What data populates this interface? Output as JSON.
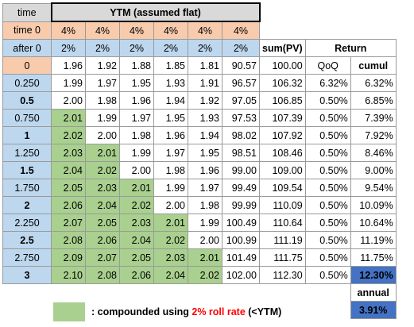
{
  "header": {
    "time_label": "time",
    "ytm_title": "YTM (assumed flat)",
    "time0_label": "time 0",
    "after0_label": "after 0",
    "time0_rates": [
      "4%",
      "4%",
      "4%",
      "4%",
      "4%",
      "4%"
    ],
    "after0_rates": [
      "2%",
      "2%",
      "2%",
      "2%",
      "2%",
      "2%"
    ],
    "sum_pv_label": "sum(PV)",
    "return_label": "Return",
    "qoq_label": "QoQ",
    "cumul_label": "cumul"
  },
  "rows": [
    {
      "time": "0",
      "pv": [
        "1.96",
        "1.92",
        "1.88",
        "1.85",
        "1.81",
        "90.57"
      ],
      "sum": "100.00",
      "qoq": "",
      "cumul": "",
      "green": 0
    },
    {
      "time": "0.250",
      "pv": [
        "1.99",
        "1.97",
        "1.95",
        "1.93",
        "1.91",
        "96.57"
      ],
      "sum": "106.32",
      "qoq": "6.32%",
      "cumul": "6.32%",
      "green": 0
    },
    {
      "time": "0.5",
      "pv": [
        "2.00",
        "1.98",
        "1.96",
        "1.94",
        "1.92",
        "97.05"
      ],
      "sum": "106.85",
      "qoq": "0.50%",
      "cumul": "6.85%",
      "green": 0
    },
    {
      "time": "0.750",
      "pv": [
        "2.01",
        "1.99",
        "1.97",
        "1.95",
        "1.93",
        "97.53"
      ],
      "sum": "107.39",
      "qoq": "0.50%",
      "cumul": "7.39%",
      "green": 1
    },
    {
      "time": "1",
      "pv": [
        "2.02",
        "2.00",
        "1.98",
        "1.96",
        "1.94",
        "98.02"
      ],
      "sum": "107.92",
      "qoq": "0.50%",
      "cumul": "7.92%",
      "green": 1
    },
    {
      "time": "1.250",
      "pv": [
        "2.03",
        "2.01",
        "1.99",
        "1.97",
        "1.95",
        "98.51"
      ],
      "sum": "108.46",
      "qoq": "0.50%",
      "cumul": "8.46%",
      "green": 2
    },
    {
      "time": "1.5",
      "pv": [
        "2.04",
        "2.02",
        "2.00",
        "1.98",
        "1.96",
        "99.00"
      ],
      "sum": "109.00",
      "qoq": "0.50%",
      "cumul": "9.00%",
      "green": 2
    },
    {
      "time": "1.750",
      "pv": [
        "2.05",
        "2.03",
        "2.01",
        "1.99",
        "1.97",
        "99.49"
      ],
      "sum": "109.54",
      "qoq": "0.50%",
      "cumul": "9.54%",
      "green": 3
    },
    {
      "time": "2",
      "pv": [
        "2.06",
        "2.04",
        "2.02",
        "2.00",
        "1.98",
        "99.99"
      ],
      "sum": "110.09",
      "qoq": "0.50%",
      "cumul": "10.09%",
      "green": 3
    },
    {
      "time": "2.250",
      "pv": [
        "2.07",
        "2.05",
        "2.03",
        "2.01",
        "1.99",
        "100.49"
      ],
      "sum": "110.64",
      "qoq": "0.50%",
      "cumul": "10.64%",
      "green": 4
    },
    {
      "time": "2.5",
      "pv": [
        "2.08",
        "2.06",
        "2.04",
        "2.02",
        "2.00",
        "100.99"
      ],
      "sum": "111.19",
      "qoq": "0.50%",
      "cumul": "11.19%",
      "green": 4
    },
    {
      "time": "2.750",
      "pv": [
        "2.09",
        "2.07",
        "2.05",
        "2.03",
        "2.01",
        "101.49"
      ],
      "sum": "111.75",
      "qoq": "0.50%",
      "cumul": "11.75%",
      "green": 5
    },
    {
      "time": "3",
      "pv": [
        "2.10",
        "2.08",
        "2.06",
        "2.04",
        "2.02",
        "102.00"
      ],
      "sum": "112.30",
      "qoq": "0.50%",
      "cumul": "12.30%",
      "green": 5
    }
  ],
  "summary": {
    "annual_label": "annual",
    "annual_value": "3.91%"
  },
  "legend": {
    "prefix": ": compounded using ",
    "highlight": "2% roll rate",
    "suffix": " (<YTM)"
  },
  "colors": {
    "header_gray": "#d9d9d9",
    "time0_orange": "#f8cbad",
    "after0_blue": "#bdd7ee",
    "compounded_green": "#a9d08e",
    "highlight_blue": "#4472c4",
    "legend_red": "#ff0000"
  }
}
